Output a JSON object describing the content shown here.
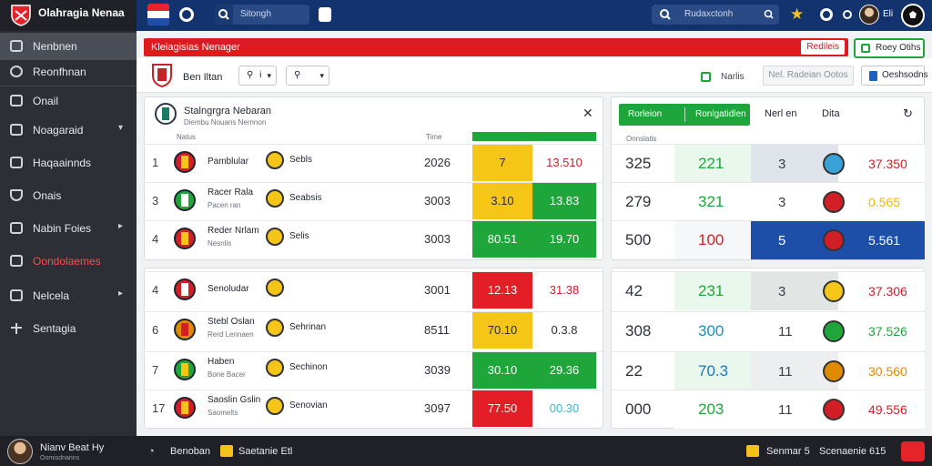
{
  "brand": {
    "title": "Olahragia Nenaa",
    "subtitle": ""
  },
  "topbar": {
    "search_label": "Sitongh",
    "search2_label": "Rudaxctonh",
    "user_label": "Eli"
  },
  "sidebar": {
    "items": [
      {
        "label": "Nenbnen",
        "active": true,
        "alert": false,
        "chevron": false
      },
      {
        "label": "Reonfhnan",
        "active": false,
        "alert": false,
        "chevron": false
      },
      {
        "label": "Onail",
        "active": false,
        "alert": false,
        "chevron": false
      },
      {
        "label": "Noagaraid",
        "active": false,
        "alert": false,
        "chevron": true
      },
      {
        "label": "Haqaainnds",
        "active": false,
        "alert": false,
        "chevron": false
      },
      {
        "label": "Onais",
        "active": false,
        "alert": false,
        "chevron": false
      },
      {
        "label": "Nabin Foies",
        "active": false,
        "alert": false,
        "chevron": true
      },
      {
        "label": "Oondolaemes",
        "active": false,
        "alert": true,
        "chevron": false
      },
      {
        "label": "Nelcela",
        "active": false,
        "alert": false,
        "chevron": true
      },
      {
        "label": "Sentagia",
        "active": false,
        "alert": false,
        "chevron": false
      }
    ]
  },
  "alertbar": {
    "label": "Kleiagisias Nenager",
    "button": "Redileis"
  },
  "green_button": "Roey Otihs",
  "toolbar": {
    "label": "Ben Iltan",
    "select1": "i",
    "select2": "",
    "check_label": "Narlis",
    "grey_button": "Nel. Radeian Ootos",
    "dash_button": "Oeshsodns"
  },
  "left_panel": {
    "title": "Stalngrgra Nebaran",
    "subtitle": "Diembu Nouans Nernnon",
    "headers": {
      "team": "Natus",
      "time": "Time"
    },
    "rows": [
      {
        "rank": "1",
        "home": "Pamblular",
        "home_sub": "",
        "away": "Sebls",
        "score": "2026",
        "odd1": "7",
        "odd2": "13.510",
        "c1": "#f5c518",
        "c2": "#ffffff",
        "t2": "#d21f26"
      },
      {
        "rank": "3",
        "home": "Racer Rala",
        "home_sub": "Pacen ran",
        "away": "Seabsis",
        "score": "3003",
        "odd1": "3.10",
        "odd2": "13.83",
        "c1": "#f5c518",
        "c2": "#1fa63a",
        "t2": "#ffffff"
      },
      {
        "rank": "4",
        "home": "Reder Nrlam",
        "home_sub": "Nesnlis",
        "away": "Selis",
        "score": "3003",
        "odd1": "80.51",
        "odd2": "19.70",
        "c1": "#1fa63a",
        "c2": "#1fa63a",
        "t2": "#ffffff"
      },
      {
        "rank": "4",
        "home": "Senoludar",
        "home_sub": "",
        "away": "",
        "score": "3001",
        "odd1": "12.13",
        "odd2": "31.38",
        "c1": "#e41e26",
        "c2": "#ffffff",
        "t2": "#d21f26"
      },
      {
        "rank": "6",
        "home": "Stebl Oslan",
        "home_sub": "Rerd Lennaen",
        "away": "Sehrinan",
        "score": "8511",
        "odd1": "70.10",
        "odd2": "0.3.8",
        "c1": "#f5c518",
        "c2": "#ffffff",
        "t2": "#2a2f37"
      },
      {
        "rank": "7",
        "home": "Haben",
        "home_sub": "Bone Bacer",
        "away": "Sechinon",
        "score": "3039",
        "odd1": "30.10",
        "odd2": "29.36",
        "c1": "#1fa63a",
        "c2": "#1fa63a",
        "t2": "#ffffff"
      },
      {
        "rank": "17",
        "home": "Saoslin Gslin",
        "home_sub": "Saomelts",
        "away": "Senovian",
        "score": "3097",
        "odd1": "77.50",
        "odd2": "00.30",
        "c1": "#e41e26",
        "c2": "#ffffff",
        "t2": "#36b6d8"
      }
    ]
  },
  "right_panel": {
    "tab1": "Rorleion",
    "tab2": "Ronlgatidlen",
    "col3": "Nerl en",
    "col4": "Dita",
    "header_small": "Onnslatis",
    "rows": [
      {
        "n1": "325",
        "n2": "221",
        "n3": "3",
        "val": "37.350",
        "c_n2": "#1fa63a",
        "c_val": "#d21f26",
        "bg_n2": "#eaf7ec",
        "bg_n3": "#dfe3ea",
        "bg_val": "#ffffff"
      },
      {
        "n1": "279",
        "n2": "321",
        "n3": "3",
        "val": "0.565",
        "c_n2": "#1fa63a",
        "c_val": "#f5b800",
        "bg_n2": "#ffffff",
        "bg_n3": "#ffffff",
        "bg_val": "#ffffff"
      },
      {
        "n1": "500",
        "n2": "100",
        "n3": "5",
        "val": "5.561",
        "c_n2": "#d21f26",
        "c_val": "#ffffff",
        "bg_n2": "#f6f7f8",
        "bg_n3": "#1d4fa8",
        "bg_val": "#1d4fa8"
      },
      {
        "n1": "42",
        "n2": "231",
        "n3": "3",
        "val": "37.306",
        "c_n2": "#1fa63a",
        "c_val": "#d21f26",
        "bg_n2": "#eaf7ec",
        "bg_n3": "#e1e5e3",
        "bg_val": "#ffffff"
      },
      {
        "n1": "308",
        "n2": "300",
        "n3": "11",
        "val": "37.526",
        "c_n2": "#1c8fb8",
        "c_val": "#1fa63a",
        "bg_n2": "#ffffff",
        "bg_n3": "#ffffff",
        "bg_val": "#ffffff"
      },
      {
        "n1": "22",
        "n2": "70.3",
        "n3": "11",
        "val": "30.560",
        "c_n2": "#1a7ac0",
        "c_val": "#e08a00",
        "bg_n2": "#eaf7ec",
        "bg_n3": "#eceeef",
        "bg_val": "#ffffff"
      },
      {
        "n1": "000",
        "n2": "203",
        "n3": "11",
        "val": "49.556",
        "c_n2": "#1fa63a",
        "c_val": "#d21f26",
        "bg_n2": "#ffffff",
        "bg_n3": "#ffffff",
        "bg_val": "#ffffff"
      }
    ]
  },
  "bottombar": {
    "user_name": "Nianv Beat Hy",
    "user_sub": "Oomisdnanns",
    "item1": "Benoban",
    "item2": "Saetanie Etl",
    "item3": "Senmar 5",
    "item4": "Scenaenie 615"
  }
}
